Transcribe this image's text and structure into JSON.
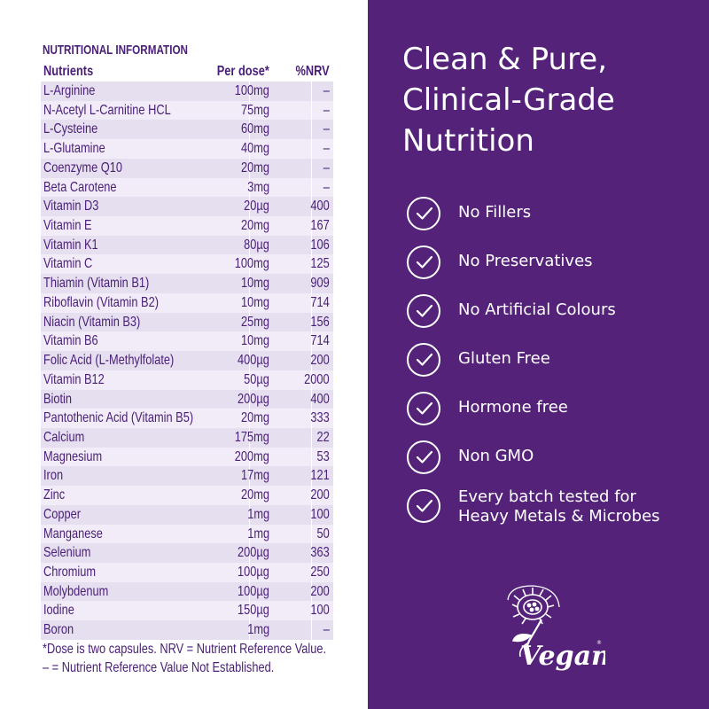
{
  "nutrition": {
    "title": "NUTRITIONAL INFORMATION",
    "headers": {
      "nutrients": "Nutrients",
      "per_dose": "Per dose*",
      "nrv": "%NRV"
    },
    "rows": [
      {
        "name": "L-Arginine",
        "dose": "100mg",
        "nrv": "–"
      },
      {
        "name": "N-Acetyl L-Carnitine HCL",
        "dose": "75mg",
        "nrv": "–"
      },
      {
        "name": "L-Cysteine",
        "dose": "60mg",
        "nrv": "–"
      },
      {
        "name": "L-Glutamine",
        "dose": "40mg",
        "nrv": "–"
      },
      {
        "name": "Coenzyme Q10",
        "dose": "20mg",
        "nrv": "–"
      },
      {
        "name": "Beta Carotene",
        "dose": "3mg",
        "nrv": "–"
      },
      {
        "name": "Vitamin D3",
        "dose": "20µg",
        "nrv": "400"
      },
      {
        "name": "Vitamin E",
        "dose": "20mg",
        "nrv": "167"
      },
      {
        "name": "Vitamin K1",
        "dose": "80µg",
        "nrv": "106"
      },
      {
        "name": "Vitamin C",
        "dose": "100mg",
        "nrv": "125"
      },
      {
        "name": "Thiamin (Vitamin B1)",
        "dose": "10mg",
        "nrv": "909"
      },
      {
        "name": "Riboflavin (Vitamin B2)",
        "dose": "10mg",
        "nrv": "714"
      },
      {
        "name": "Niacin (Vitamin B3)",
        "dose": "25mg",
        "nrv": "156"
      },
      {
        "name": "Vitamin B6",
        "dose": "10mg",
        "nrv": "714"
      },
      {
        "name": "Folic Acid (L-Methylfolate)",
        "dose": "400µg",
        "nrv": "200"
      },
      {
        "name": "Vitamin B12",
        "dose": "50µg",
        "nrv": "2000"
      },
      {
        "name": "Biotin",
        "dose": "200µg",
        "nrv": "400"
      },
      {
        "name": "Pantothenic Acid (Vitamin B5)",
        "dose": "20mg",
        "nrv": "333"
      },
      {
        "name": "Calcium",
        "dose": "175mg",
        "nrv": "22"
      },
      {
        "name": "Magnesium",
        "dose": "200mg",
        "nrv": "53"
      },
      {
        "name": "Iron",
        "dose": "17mg",
        "nrv": "121"
      },
      {
        "name": "Zinc",
        "dose": "20mg",
        "nrv": "200"
      },
      {
        "name": "Copper",
        "dose": "1mg",
        "nrv": "100"
      },
      {
        "name": "Manganese",
        "dose": "1mg",
        "nrv": "50"
      },
      {
        "name": "Selenium",
        "dose": "200µg",
        "nrv": "363"
      },
      {
        "name": "Chromium",
        "dose": "100µg",
        "nrv": "250"
      },
      {
        "name": "Molybdenum",
        "dose": "100µg",
        "nrv": "200"
      },
      {
        "name": "Iodine",
        "dose": "150µg",
        "nrv": "100"
      },
      {
        "name": "Boron",
        "dose": "1mg",
        "nrv": "–"
      }
    ],
    "footnote_1": "*Dose is two capsules. NRV = Nutrient Reference Value.",
    "footnote_2": "– = Nutrient Reference Value Not Established."
  },
  "headline": {
    "line_1": "Clean & Pure,",
    "line_2": "Clinical-Grade",
    "line_3": "Nutrition"
  },
  "features": [
    {
      "lines": [
        "No Fillers"
      ]
    },
    {
      "lines": [
        "No Preservatives"
      ]
    },
    {
      "lines": [
        "No Artificial Colours"
      ]
    },
    {
      "lines": [
        "Gluten Free"
      ]
    },
    {
      "lines": [
        "Hormone free"
      ]
    },
    {
      "lines": [
        "Non GMO"
      ]
    },
    {
      "lines": [
        "Every batch tested for",
        "Heavy Metals & Microbes"
      ]
    }
  ],
  "vegan_logo": {
    "text": "Vegan",
    "icon": "vegan-sunflower-logo"
  },
  "colors": {
    "brand_purple": "#542379",
    "text_purple": "#4a2077",
    "row_shade_dark": "#e6dff0",
    "row_shade_light": "#f1ecf7"
  }
}
